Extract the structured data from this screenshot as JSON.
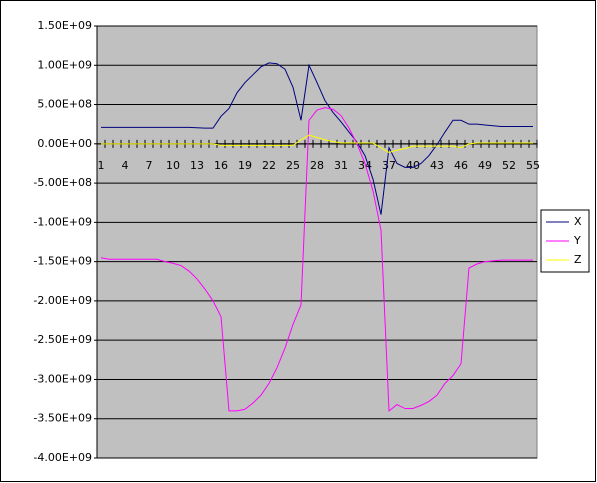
{
  "chart_data": {
    "type": "line",
    "categories": [
      1,
      null,
      null,
      4,
      null,
      null,
      7,
      null,
      null,
      10,
      null,
      null,
      13,
      null,
      null,
      16,
      null,
      null,
      19,
      null,
      null,
      22,
      null,
      null,
      25,
      null,
      null,
      28,
      null,
      null,
      31,
      null,
      null,
      34,
      null,
      null,
      37,
      null,
      null,
      40,
      null,
      null,
      43,
      null,
      null,
      46,
      null,
      null,
      49,
      null,
      null,
      52,
      null,
      null,
      55
    ],
    "series": [
      {
        "name": "X",
        "color": "#000080",
        "values": [
          210000000,
          210000000,
          210000000,
          210000000,
          210000000,
          210000000,
          210000000,
          210000000,
          210000000,
          210000000,
          210000000,
          210000000,
          205000000,
          200000000,
          200000000,
          350000000,
          450000000,
          650000000,
          780000000,
          880000000,
          980000000,
          1030000000,
          1020000000,
          950000000,
          720000000,
          300000000,
          1000000000,
          780000000,
          550000000,
          400000000,
          280000000,
          150000000,
          20000000,
          -150000000,
          -450000000,
          -900000000,
          -50000000,
          -250000000,
          -300000000,
          -300000000,
          -250000000,
          -150000000,
          -10000000,
          150000000,
          300000000,
          300000000,
          250000000,
          250000000,
          240000000,
          230000000,
          220000000,
          220000000,
          220000000,
          220000000,
          220000000
        ]
      },
      {
        "name": "Y",
        "color": "#FF00FF",
        "values": [
          -1450000000,
          -1470000000,
          -1470000000,
          -1470000000,
          -1470000000,
          -1470000000,
          -1470000000,
          -1470000000,
          -1500000000,
          -1520000000,
          -1550000000,
          -1620000000,
          -1720000000,
          -1850000000,
          -2000000000,
          -2200000000,
          -3400000000,
          -3400000000,
          -3380000000,
          -3300000000,
          -3200000000,
          -3050000000,
          -2850000000,
          -2600000000,
          -2300000000,
          -2050000000,
          300000000,
          430000000,
          460000000,
          440000000,
          360000000,
          200000000,
          0,
          -250000000,
          -600000000,
          -1100000000,
          -3400000000,
          -3320000000,
          -3370000000,
          -3370000000,
          -3330000000,
          -3280000000,
          -3200000000,
          -3050000000,
          -2950000000,
          -2800000000,
          -1580000000,
          -1530000000,
          -1500000000,
          -1490000000,
          -1480000000,
          -1480000000,
          -1480000000,
          -1480000000,
          -1480000000
        ]
      },
      {
        "name": "Z",
        "color": "#FFFF00",
        "values": [
          0,
          0,
          0,
          0,
          0,
          0,
          0,
          0,
          0,
          0,
          0,
          0,
          0,
          0,
          0,
          -20000000,
          -20000000,
          -20000000,
          -20000000,
          -20000000,
          -20000000,
          -20000000,
          -20000000,
          -20000000,
          -20000000,
          50000000,
          110000000,
          80000000,
          50000000,
          30000000,
          10000000,
          10000000,
          10000000,
          10000000,
          10000000,
          -50000000,
          -110000000,
          -80000000,
          -60000000,
          -30000000,
          -30000000,
          -30000000,
          -30000000,
          -30000000,
          -30000000,
          -50000000,
          0,
          10000000,
          10000000,
          10000000,
          10000000,
          10000000,
          10000000,
          10000000,
          10000000
        ]
      }
    ],
    "ylim": [
      -4000000000,
      1500000000
    ],
    "yticks": [
      {
        "value": 1500000000,
        "label": "1.50E+09"
      },
      {
        "value": 1000000000,
        "label": "1.00E+09"
      },
      {
        "value": 500000000,
        "label": "5.00E+08"
      },
      {
        "value": 0,
        "label": "0.00E+00"
      },
      {
        "value": -500000000,
        "label": "-5.00E+08"
      },
      {
        "value": -1000000000,
        "label": "-1.00E+09"
      },
      {
        "value": -1500000000,
        "label": "-1.50E+09"
      },
      {
        "value": -2000000000,
        "label": "-2.00E+09"
      },
      {
        "value": -2500000000,
        "label": "-2.50E+09"
      },
      {
        "value": -3000000000,
        "label": "-3.00E+09"
      },
      {
        "value": -3500000000,
        "label": "-3.50E+09"
      },
      {
        "value": -4000000000,
        "label": "-4.00E+09"
      }
    ],
    "grid": true,
    "legend": "right"
  }
}
